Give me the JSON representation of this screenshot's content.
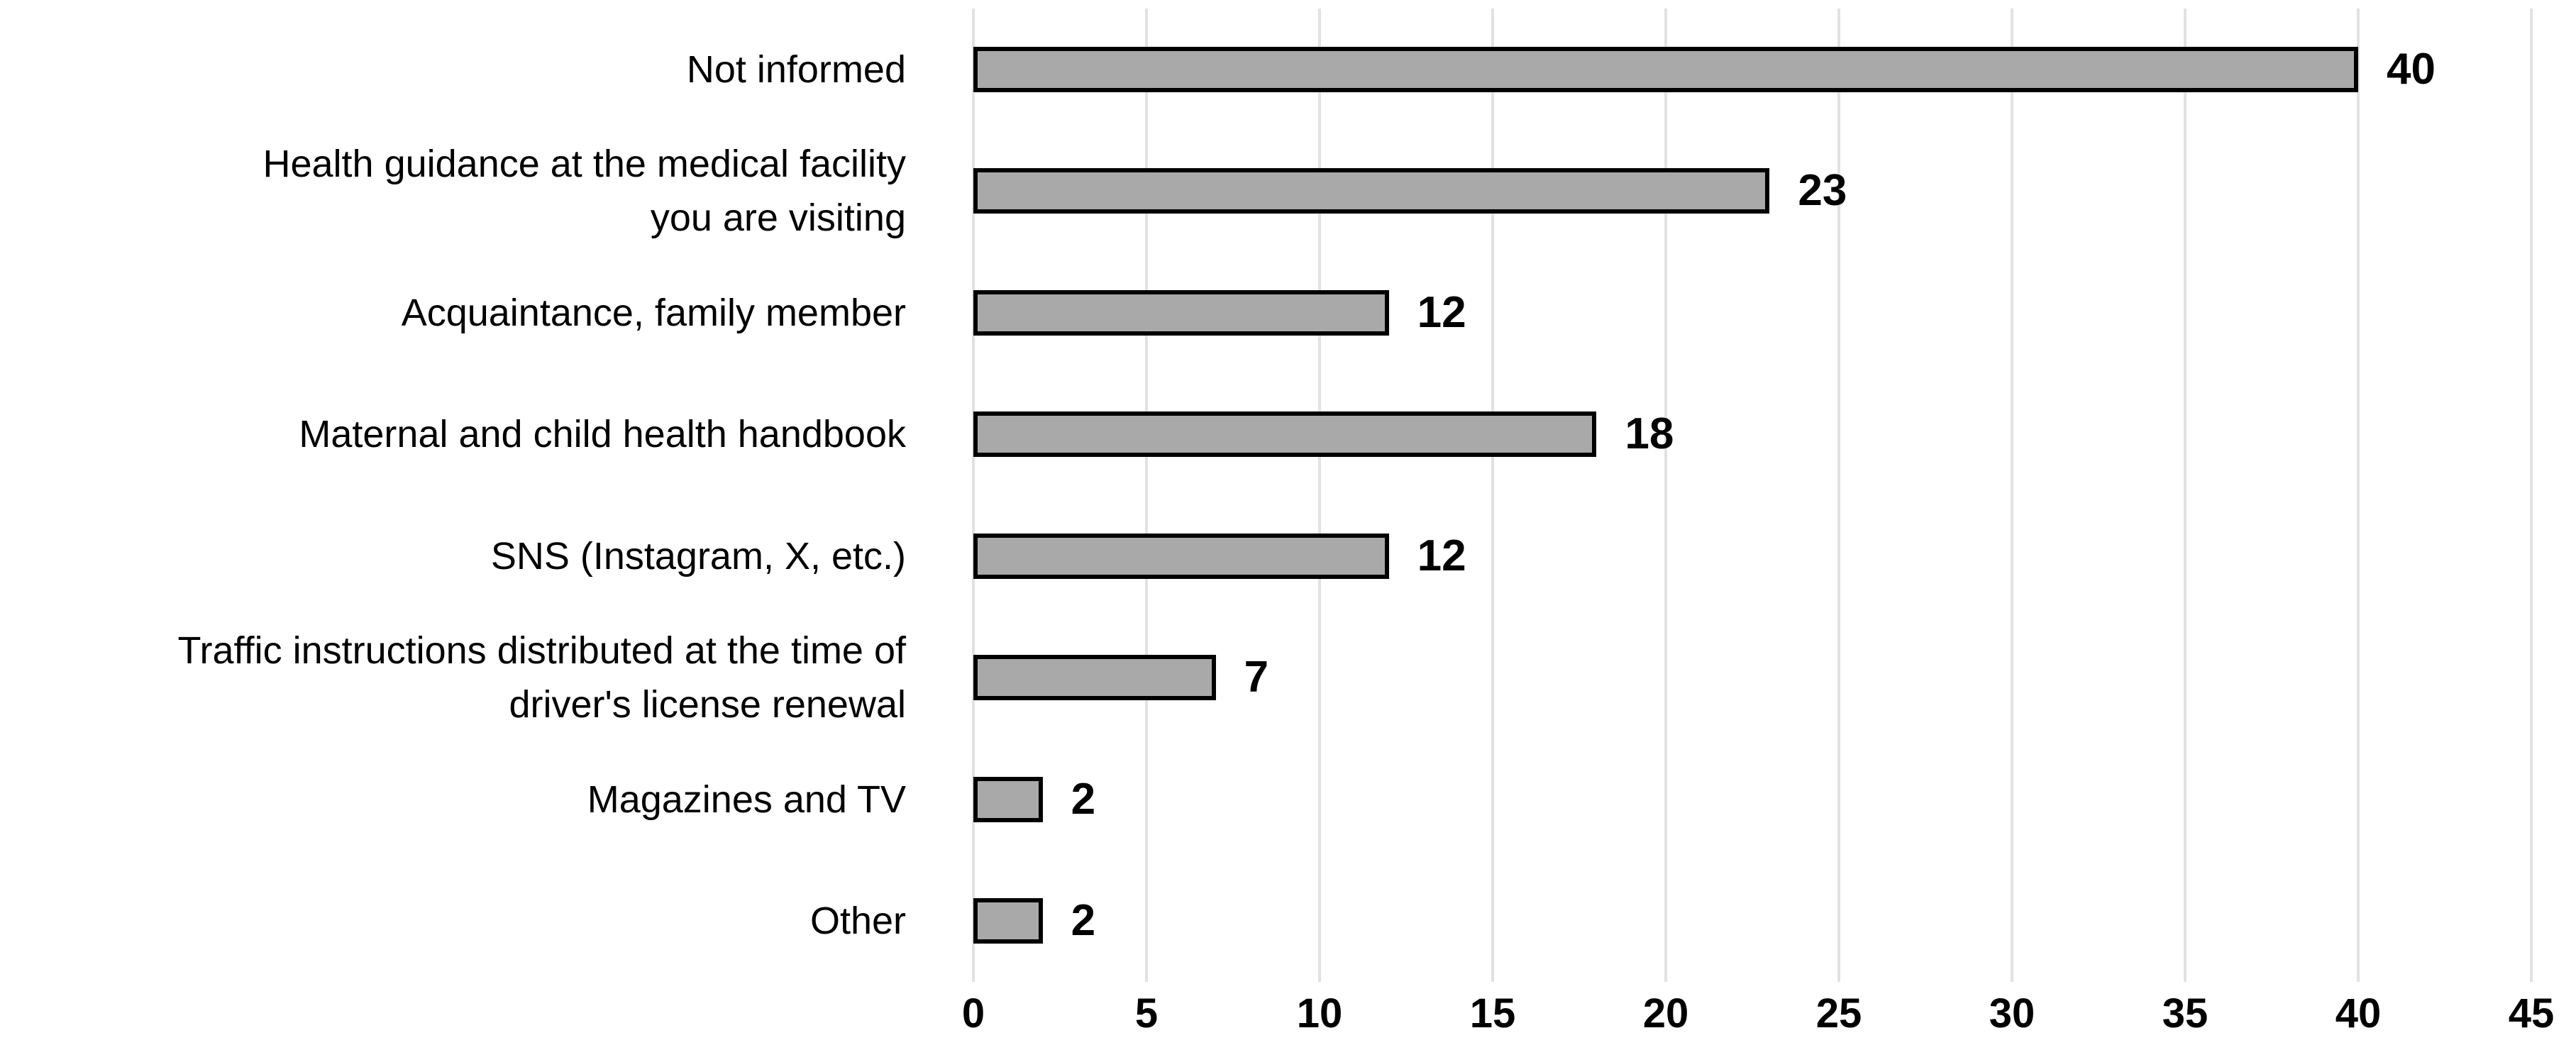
{
  "chart_data": {
    "type": "bar",
    "orientation": "horizontal",
    "title": "",
    "xlabel": "",
    "ylabel": "",
    "categories": [
      "Not informed",
      "Health guidance at the medical facility\nyou are visiting",
      "Acquaintance, family member",
      "Maternal and child health handbook",
      "SNS (Instagram, X, etc.)",
      "Traffic instructions distributed at the time of\ndriver's license renewal",
      "Magazines and TV",
      "Other"
    ],
    "values": [
      40,
      23,
      12,
      18,
      12,
      7,
      2,
      2
    ],
    "xlim": [
      0,
      45
    ],
    "x_ticks": [
      0,
      5,
      10,
      15,
      20,
      25,
      30,
      35,
      40,
      45
    ],
    "grid": true,
    "legend": false,
    "colors": {
      "bar_fill": "#A9A9A9",
      "bar_border": "#000000",
      "gridline": "#E2E2E2",
      "text": "#000000",
      "background": "#FFFFFF"
    }
  }
}
